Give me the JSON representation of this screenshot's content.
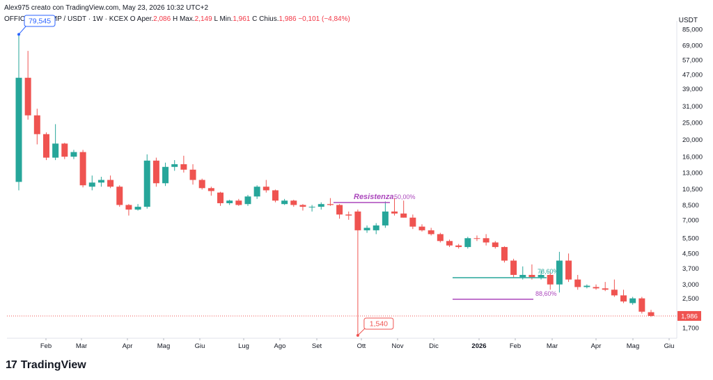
{
  "header": {
    "attribution": "Alex975 creato con TradingView.com, May 23, 2026 10:32 UTC+2"
  },
  "ohlc": {
    "symbol": "OFFICIAL TRUMP / USDT · 1W · KCEX",
    "open_label": "O",
    "open_prefix": "Aper.",
    "open": "2,086",
    "high_label": "H",
    "high_prefix": "Max.",
    "high": "2,149",
    "low_label": "L",
    "low_prefix": "Min.",
    "low": "1,961",
    "close_label": "C",
    "close_prefix": "Chius.",
    "close": "1,986",
    "change": "−0,101 (−4,84%)"
  },
  "logo": {
    "text": "TradingView",
    "mark": "17"
  },
  "colors": {
    "up": "#26a69a",
    "down": "#ef5350",
    "purple": "#ab47bc",
    "teal_line": "#26a69a",
    "price_line": "#ef5350"
  },
  "chart_data": {
    "type": "candlestick",
    "y_scale": "log",
    "unit": "USDT",
    "y_ticks": [
      "85,000",
      "69,000",
      "57,000",
      "47,000",
      "39,000",
      "31,000",
      "25,000",
      "20,000",
      "16,000",
      "13,000",
      "10,500",
      "8,500",
      "7,000",
      "5,500",
      "4,500",
      "3,700",
      "3,000",
      "2,500",
      "1,700"
    ],
    "x_ticks": [
      "Feb",
      "Mar",
      "Apr",
      "Mag",
      "Giu",
      "Lug",
      "Ago",
      "Set",
      "Ott",
      "Nov",
      "Dic",
      "2026",
      "Feb",
      "Mar",
      "Apr",
      "Mag",
      "Giu"
    ],
    "last_price": "1,986",
    "candles": [
      {
        "o": 11.5,
        "h": 79.5,
        "l": 10.3,
        "c": 45.0
      },
      {
        "o": 45.0,
        "h": 64.0,
        "l": 26.0,
        "c": 27.5
      },
      {
        "o": 27.5,
        "h": 30.0,
        "l": 18.8,
        "c": 21.5
      },
      {
        "o": 21.5,
        "h": 22.0,
        "l": 15.3,
        "c": 15.8
      },
      {
        "o": 15.8,
        "h": 24.5,
        "l": 15.3,
        "c": 19.0
      },
      {
        "o": 19.0,
        "h": 19.2,
        "l": 15.5,
        "c": 16.0
      },
      {
        "o": 16.0,
        "h": 17.5,
        "l": 15.5,
        "c": 17.0
      },
      {
        "o": 17.0,
        "h": 17.5,
        "l": 10.7,
        "c": 11.0
      },
      {
        "o": 10.8,
        "h": 12.5,
        "l": 10.3,
        "c": 11.4
      },
      {
        "o": 11.4,
        "h": 12.3,
        "l": 10.8,
        "c": 11.8
      },
      {
        "o": 11.8,
        "h": 12.5,
        "l": 10.6,
        "c": 10.8
      },
      {
        "o": 10.8,
        "h": 11.0,
        "l": 8.3,
        "c": 8.5
      },
      {
        "o": 8.5,
        "h": 8.6,
        "l": 7.4,
        "c": 8.0
      },
      {
        "o": 8.0,
        "h": 8.6,
        "l": 7.9,
        "c": 8.3
      },
      {
        "o": 8.3,
        "h": 16.5,
        "l": 8.1,
        "c": 15.2
      },
      {
        "o": 15.2,
        "h": 15.8,
        "l": 10.8,
        "c": 11.3
      },
      {
        "o": 11.3,
        "h": 14.8,
        "l": 10.9,
        "c": 14.0
      },
      {
        "o": 14.0,
        "h": 15.3,
        "l": 13.3,
        "c": 14.5
      },
      {
        "o": 14.5,
        "h": 16.2,
        "l": 13.0,
        "c": 13.5
      },
      {
        "o": 13.5,
        "h": 14.5,
        "l": 11.1,
        "c": 11.8
      },
      {
        "o": 11.8,
        "h": 12.0,
        "l": 10.4,
        "c": 10.6
      },
      {
        "o": 10.6,
        "h": 10.8,
        "l": 9.6,
        "c": 10.2
      },
      {
        "o": 10.0,
        "h": 10.1,
        "l": 8.4,
        "c": 8.7
      },
      {
        "o": 8.7,
        "h": 9.1,
        "l": 8.5,
        "c": 9.0
      },
      {
        "o": 9.0,
        "h": 9.2,
        "l": 8.4,
        "c": 8.5
      },
      {
        "o": 8.6,
        "h": 9.7,
        "l": 8.4,
        "c": 9.5
      },
      {
        "o": 9.5,
        "h": 11.0,
        "l": 9.2,
        "c": 10.8
      },
      {
        "o": 10.8,
        "h": 11.8,
        "l": 10.0,
        "c": 10.3
      },
      {
        "o": 10.3,
        "h": 10.4,
        "l": 8.8,
        "c": 9.0
      },
      {
        "o": 8.6,
        "h": 9.2,
        "l": 8.5,
        "c": 9.0
      },
      {
        "o": 9.0,
        "h": 9.1,
        "l": 8.3,
        "c": 8.5
      },
      {
        "o": 8.5,
        "h": 8.6,
        "l": 7.9,
        "c": 8.3
      },
      {
        "o": 8.3,
        "h": 8.5,
        "l": 7.8,
        "c": 8.3
      },
      {
        "o": 8.3,
        "h": 8.8,
        "l": 8.0,
        "c": 8.6
      },
      {
        "o": 8.6,
        "h": 9.3,
        "l": 8.4,
        "c": 8.5
      },
      {
        "o": 8.5,
        "h": 8.6,
        "l": 7.1,
        "c": 7.5
      },
      {
        "o": 7.5,
        "h": 7.8,
        "l": 7.0,
        "c": 7.4
      },
      {
        "o": 7.8,
        "h": 8.0,
        "l": 1.54,
        "c": 6.1
      },
      {
        "o": 6.1,
        "h": 6.5,
        "l": 5.9,
        "c": 6.3
      },
      {
        "o": 6.1,
        "h": 6.7,
        "l": 5.8,
        "c": 6.5
      },
      {
        "o": 6.5,
        "h": 8.9,
        "l": 6.3,
        "c": 7.8
      },
      {
        "o": 7.8,
        "h": 9.3,
        "l": 7.4,
        "c": 7.6
      },
      {
        "o": 7.6,
        "h": 9.0,
        "l": 7.2,
        "c": 7.2
      },
      {
        "o": 7.2,
        "h": 7.5,
        "l": 6.2,
        "c": 6.4
      },
      {
        "o": 6.4,
        "h": 6.6,
        "l": 6.0,
        "c": 6.1
      },
      {
        "o": 6.1,
        "h": 6.3,
        "l": 5.7,
        "c": 5.8
      },
      {
        "o": 5.8,
        "h": 5.9,
        "l": 5.2,
        "c": 5.3
      },
      {
        "o": 5.3,
        "h": 5.4,
        "l": 4.9,
        "c": 5.0
      },
      {
        "o": 5.0,
        "h": 5.1,
        "l": 4.8,
        "c": 4.9
      },
      {
        "o": 4.9,
        "h": 5.6,
        "l": 4.8,
        "c": 5.5
      },
      {
        "o": 5.5,
        "h": 5.7,
        "l": 5.3,
        "c": 5.45
      },
      {
        "o": 5.5,
        "h": 5.8,
        "l": 5.0,
        "c": 5.2
      },
      {
        "o": 5.2,
        "h": 5.3,
        "l": 4.8,
        "c": 4.9
      },
      {
        "o": 4.9,
        "h": 4.95,
        "l": 4.0,
        "c": 4.1
      },
      {
        "o": 4.1,
        "h": 4.2,
        "l": 3.3,
        "c": 3.4
      },
      {
        "o": 3.3,
        "h": 3.8,
        "l": 3.2,
        "c": 3.4
      },
      {
        "o": 3.4,
        "h": 3.9,
        "l": 3.2,
        "c": 3.3
      },
      {
        "o": 3.3,
        "h": 3.6,
        "l": 3.2,
        "c": 3.4
      },
      {
        "o": 3.4,
        "h": 3.5,
        "l": 2.8,
        "c": 3.0
      },
      {
        "o": 3.0,
        "h": 4.6,
        "l": 2.7,
        "c": 4.1
      },
      {
        "o": 4.1,
        "h": 4.5,
        "l": 3.1,
        "c": 3.2
      },
      {
        "o": 3.2,
        "h": 3.4,
        "l": 2.8,
        "c": 2.9
      },
      {
        "o": 2.9,
        "h": 3.0,
        "l": 2.85,
        "c": 2.95
      },
      {
        "o": 2.9,
        "h": 3.0,
        "l": 2.8,
        "c": 2.85
      },
      {
        "o": 2.85,
        "h": 3.1,
        "l": 2.75,
        "c": 2.8
      },
      {
        "o": 2.8,
        "h": 3.2,
        "l": 2.55,
        "c": 2.6
      },
      {
        "o": 2.6,
        "h": 2.8,
        "l": 2.35,
        "c": 2.4
      },
      {
        "o": 2.35,
        "h": 2.55,
        "l": 2.3,
        "c": 2.5
      },
      {
        "o": 2.5,
        "h": 2.55,
        "l": 2.05,
        "c": 2.1
      },
      {
        "o": 2.086,
        "h": 2.149,
        "l": 1.961,
        "c": 1.986
      }
    ],
    "annotations": {
      "ath_label": "79,545",
      "low_label": "1,540",
      "resistance_label": "Resistenza",
      "resistance_pct": "50,00%",
      "fib1_label": "78,60%",
      "fib2_label": "88,60%"
    }
  }
}
